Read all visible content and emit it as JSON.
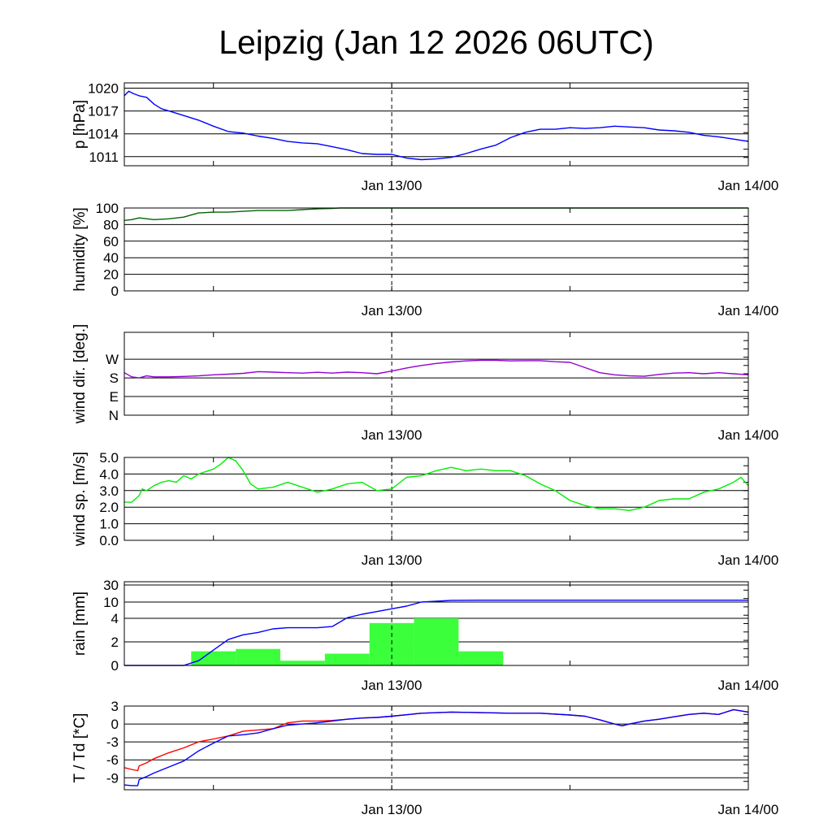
{
  "title": "Leipzig (Jan 12 2026 06UTC)",
  "colors": {
    "pressure": "#0000ff",
    "humidity": "#006400",
    "wind_dir": "#9400d3",
    "wind_speed": "#00ee00",
    "rain_bars": "#3cff3c",
    "rain_cum": "#0000ff",
    "temperature": "#ff0000",
    "dewpoint": "#0000ff"
  },
  "x_axis": {
    "unit": "hours since Jan 12 06UTC",
    "range": [
      0,
      42
    ],
    "labels": [
      {
        "h": 18,
        "text": "Jan 13/00"
      },
      {
        "h": 42,
        "text": "Jan 14/00"
      }
    ],
    "minor_ticks": [
      6,
      18,
      30
    ]
  },
  "chart_data": [
    {
      "type": "line",
      "name": "pressure",
      "ylabel": "p [hPa]",
      "ylim": [
        1009.8,
        1020.7
      ],
      "yticks": [
        {
          "v": 1011,
          "text": "1011"
        },
        {
          "v": 1014,
          "text": "1014"
        },
        {
          "v": 1017,
          "text": "1017"
        },
        {
          "v": 1020,
          "text": "1020"
        }
      ],
      "series": [
        {
          "color_key": "pressure",
          "x": [
            0,
            0.3,
            0.6,
            1.0,
            1.5,
            2.0,
            2.5,
            3.0,
            4.0,
            5.0,
            6.0,
            7.0,
            8.0,
            9.0,
            10.0,
            11.0,
            12.0,
            13.0,
            14.0,
            15.0,
            16.0,
            17.0,
            18.0,
            19.0,
            20.0,
            21.0,
            22.0,
            23.0,
            24.0,
            25.0,
            26.0,
            27.0,
            28.0,
            29.0,
            30.0,
            31.0,
            32.0,
            33.0,
            34.0,
            35.0,
            36.0,
            37.0,
            38.0,
            39.0,
            40.0,
            41.0,
            42.0
          ],
          "y": [
            1019.0,
            1019.6,
            1019.3,
            1019.0,
            1018.8,
            1017.9,
            1017.3,
            1017.0,
            1016.4,
            1015.8,
            1015.0,
            1014.3,
            1014.1,
            1013.7,
            1013.4,
            1013.0,
            1012.8,
            1012.7,
            1012.3,
            1011.9,
            1011.4,
            1011.3,
            1011.3,
            1010.8,
            1010.6,
            1010.7,
            1010.9,
            1011.4,
            1012.0,
            1012.5,
            1013.5,
            1014.2,
            1014.6,
            1014.6,
            1014.8,
            1014.7,
            1014.8,
            1015.0,
            1014.9,
            1014.8,
            1014.5,
            1014.4,
            1014.2,
            1013.8,
            1013.6,
            1013.3,
            1013.0
          ]
        }
      ]
    },
    {
      "type": "line",
      "name": "humidity",
      "ylabel": "humidity [%]",
      "ylim": [
        0,
        100
      ],
      "yticks": [
        {
          "v": 0,
          "text": "0"
        },
        {
          "v": 20,
          "text": "20"
        },
        {
          "v": 40,
          "text": "40"
        },
        {
          "v": 60,
          "text": "60"
        },
        {
          "v": 80,
          "text": "80"
        },
        {
          "v": 100,
          "text": "100"
        }
      ],
      "series": [
        {
          "color_key": "humidity",
          "x": [
            0,
            0.5,
            1.0,
            2.0,
            3.0,
            4.0,
            5.0,
            6.0,
            7.0,
            8.0,
            9.0,
            10.0,
            11.0,
            12.0,
            13.0,
            14.0,
            14.5,
            15.0,
            18.0,
            24.0,
            30.0,
            36.0,
            42.0
          ],
          "y": [
            85,
            86,
            88,
            86,
            87,
            89,
            94,
            95,
            95,
            96,
            97,
            97,
            97,
            98,
            99,
            99.5,
            100,
            100,
            100,
            100,
            100,
            100,
            100
          ]
        }
      ]
    },
    {
      "type": "line",
      "name": "wind direction",
      "ylabel": "wind dir. [deg.]",
      "ylim": [
        0,
        400
      ],
      "yticks": [
        {
          "v": 0,
          "text": "N"
        },
        {
          "v": 90,
          "text": "E"
        },
        {
          "v": 180,
          "text": "S"
        },
        {
          "v": 270,
          "text": "W"
        }
      ],
      "series": [
        {
          "color_key": "wind_dir",
          "x": [
            0,
            0.5,
            1.0,
            1.5,
            2.0,
            3.0,
            4.0,
            5.0,
            6.0,
            7.0,
            8.0,
            9.0,
            10.0,
            11.0,
            12.0,
            13.0,
            14.0,
            15.0,
            16.0,
            17.0,
            18.0,
            19.0,
            20.0,
            21.0,
            22.0,
            23.0,
            24.0,
            25.0,
            26.0,
            27.0,
            28.0,
            29.0,
            30.0,
            31.0,
            32.0,
            33.0,
            34.0,
            35.0,
            36.0,
            37.0,
            38.0,
            39.0,
            40.0,
            41.0,
            42.0
          ],
          "y": [
            205,
            185,
            180,
            190,
            185,
            185,
            187,
            190,
            195,
            198,
            202,
            210,
            208,
            205,
            203,
            207,
            203,
            208,
            205,
            200,
            213,
            228,
            240,
            250,
            257,
            262,
            265,
            265,
            262,
            263,
            263,
            258,
            255,
            230,
            205,
            195,
            190,
            188,
            197,
            203,
            205,
            200,
            205,
            200,
            195
          ]
        }
      ]
    },
    {
      "type": "line",
      "name": "wind speed",
      "ylabel": "wind sp. [m/s]",
      "ylim": [
        0,
        5.0
      ],
      "yticks": [
        {
          "v": 0,
          "text": "0.0"
        },
        {
          "v": 1,
          "text": "1.0"
        },
        {
          "v": 2,
          "text": "2.0"
        },
        {
          "v": 3,
          "text": "3.0"
        },
        {
          "v": 4,
          "text": "4.0"
        },
        {
          "v": 5,
          "text": "5.0"
        }
      ],
      "series": [
        {
          "color_key": "wind_speed",
          "x": [
            0,
            0.5,
            1.0,
            1.2,
            1.5,
            2.0,
            2.5,
            3.0,
            3.5,
            4.0,
            4.5,
            5.0,
            6.0,
            6.5,
            7.0,
            7.5,
            8.0,
            8.5,
            9.0,
            10.0,
            11.0,
            12.0,
            13.0,
            14.0,
            15.0,
            16.0,
            17.0,
            18.0,
            19.0,
            20.0,
            21.0,
            22.0,
            23.0,
            24.0,
            25.0,
            26.0,
            27.0,
            28.0,
            29.0,
            30.0,
            31.0,
            32.0,
            33.0,
            34.0,
            35.0,
            36.0,
            37.0,
            38.0,
            39.0,
            40.0,
            40.5,
            41.0,
            41.5,
            42.0
          ],
          "y": [
            2.3,
            2.3,
            2.7,
            3.1,
            3.0,
            3.3,
            3.5,
            3.6,
            3.5,
            3.9,
            3.7,
            4.0,
            4.3,
            4.6,
            5.0,
            4.8,
            4.2,
            3.4,
            3.1,
            3.2,
            3.5,
            3.2,
            2.9,
            3.1,
            3.4,
            3.5,
            3.0,
            3.1,
            3.8,
            3.9,
            4.2,
            4.4,
            4.2,
            4.3,
            4.2,
            4.2,
            3.9,
            3.4,
            3.0,
            2.4,
            2.1,
            1.9,
            1.9,
            1.8,
            2.0,
            2.4,
            2.5,
            2.5,
            2.9,
            3.1,
            3.3,
            3.5,
            3.8,
            3.3
          ]
        }
      ]
    },
    {
      "type": "bar",
      "name": "rain",
      "ylabel": "rain [mm]",
      "ylim": [
        0,
        30
      ],
      "yscale": "segmented",
      "yticks": [
        {
          "v": 0,
          "text": "0"
        },
        {
          "v": 2,
          "text": "2"
        },
        {
          "v": 4,
          "text": "4"
        },
        {
          "v": 10,
          "text": "10"
        },
        {
          "v": 30,
          "text": "30"
        }
      ],
      "bars": [
        {
          "x0": 4.5,
          "x1": 7.5,
          "value": 1.2
        },
        {
          "x0": 7.5,
          "x1": 10.5,
          "value": 1.4
        },
        {
          "x0": 10.5,
          "x1": 13.5,
          "value": 0.4
        },
        {
          "x0": 13.5,
          "x1": 16.5,
          "value": 1.0
        },
        {
          "x0": 16.5,
          "x1": 19.5,
          "value": 3.6
        },
        {
          "x0": 19.5,
          "x1": 22.5,
          "value": 4.0
        },
        {
          "x0": 22.5,
          "x1": 25.5,
          "value": 1.2
        }
      ],
      "series": [
        {
          "color_key": "rain_cum",
          "x": [
            0,
            4.0,
            5.0,
            6.0,
            7.0,
            8.0,
            9.0,
            10.0,
            11.0,
            12.0,
            13.0,
            14.0,
            15.0,
            16.0,
            17.0,
            18.0,
            19.0,
            20.0,
            21.0,
            22.0,
            24.0,
            30.0,
            36.0,
            42.0
          ],
          "y": [
            0,
            0,
            0.4,
            1.3,
            2.2,
            2.6,
            2.8,
            3.1,
            3.2,
            3.2,
            3.2,
            3.3,
            4.2,
            5.5,
            6.5,
            7.5,
            8.5,
            10.0,
            11.0,
            12.0,
            12.2,
            12.2,
            12.2,
            12.2
          ]
        }
      ]
    },
    {
      "type": "line",
      "name": "temperature / dewpoint",
      "ylabel": "T / Td [*C]",
      "ylim": [
        -11,
        3
      ],
      "yticks": [
        {
          "v": -9,
          "text": "-9"
        },
        {
          "v": -6,
          "text": "-6"
        },
        {
          "v": -3,
          "text": "-3"
        },
        {
          "v": 0,
          "text": "0"
        },
        {
          "v": 3,
          "text": "3"
        }
      ],
      "series": [
        {
          "color_key": "temperature",
          "x": [
            0,
            0.5,
            0.9,
            1.0,
            1.5,
            2.0,
            3.0,
            4.0,
            5.0,
            6.0,
            7.0,
            8.0,
            9.0,
            10.0,
            11.0,
            12.0,
            13.0,
            14.0,
            15.0,
            16.0,
            17.0,
            18.0,
            20.0,
            22.0,
            24.0,
            26.0,
            28.0,
            30.0,
            31.0,
            32.0,
            33.0,
            33.5,
            34.0,
            35.0,
            36.0,
            37.0,
            38.0,
            39.0,
            40.0,
            41.0,
            42.0
          ],
          "y": [
            -7.3,
            -7.6,
            -7.8,
            -7.0,
            -6.5,
            -5.8,
            -4.8,
            -4.0,
            -3.0,
            -2.5,
            -2.0,
            -1.2,
            -1.0,
            -0.8,
            0.2,
            0.5,
            0.5,
            0.6,
            0.8,
            1.0,
            1.1,
            1.3,
            1.8,
            2.0,
            1.9,
            1.8,
            1.8,
            1.5,
            1.3,
            0.7,
            0.0,
            -0.3,
            0.0,
            0.5,
            0.8,
            1.2,
            1.6,
            1.8,
            1.6,
            2.4,
            2.0
          ]
        },
        {
          "color_key": "dewpoint",
          "x": [
            0,
            0.5,
            0.9,
            1.0,
            1.5,
            2.0,
            3.0,
            4.0,
            5.0,
            6.0,
            7.0,
            8.0,
            9.0,
            10.0,
            11.0,
            12.0,
            13.0,
            14.0,
            15.0,
            16.0,
            17.0,
            18.0,
            20.0,
            22.0,
            24.0,
            26.0,
            28.0,
            30.0,
            31.0,
            32.0,
            33.0,
            33.5,
            34.0,
            35.0,
            36.0,
            37.0,
            38.0,
            39.0,
            40.0,
            41.0,
            42.0
          ],
          "y": [
            -10.2,
            -10.3,
            -10.3,
            -9.3,
            -8.8,
            -8.2,
            -7.2,
            -6.2,
            -4.5,
            -3.2,
            -2.0,
            -1.8,
            -1.5,
            -0.8,
            -0.2,
            0.0,
            0.2,
            0.5,
            0.8,
            1.0,
            1.1,
            1.3,
            1.8,
            2.0,
            1.9,
            1.8,
            1.8,
            1.5,
            1.3,
            0.7,
            0.0,
            -0.3,
            0.0,
            0.5,
            0.8,
            1.2,
            1.6,
            1.8,
            1.6,
            2.4,
            2.0
          ]
        }
      ]
    }
  ]
}
